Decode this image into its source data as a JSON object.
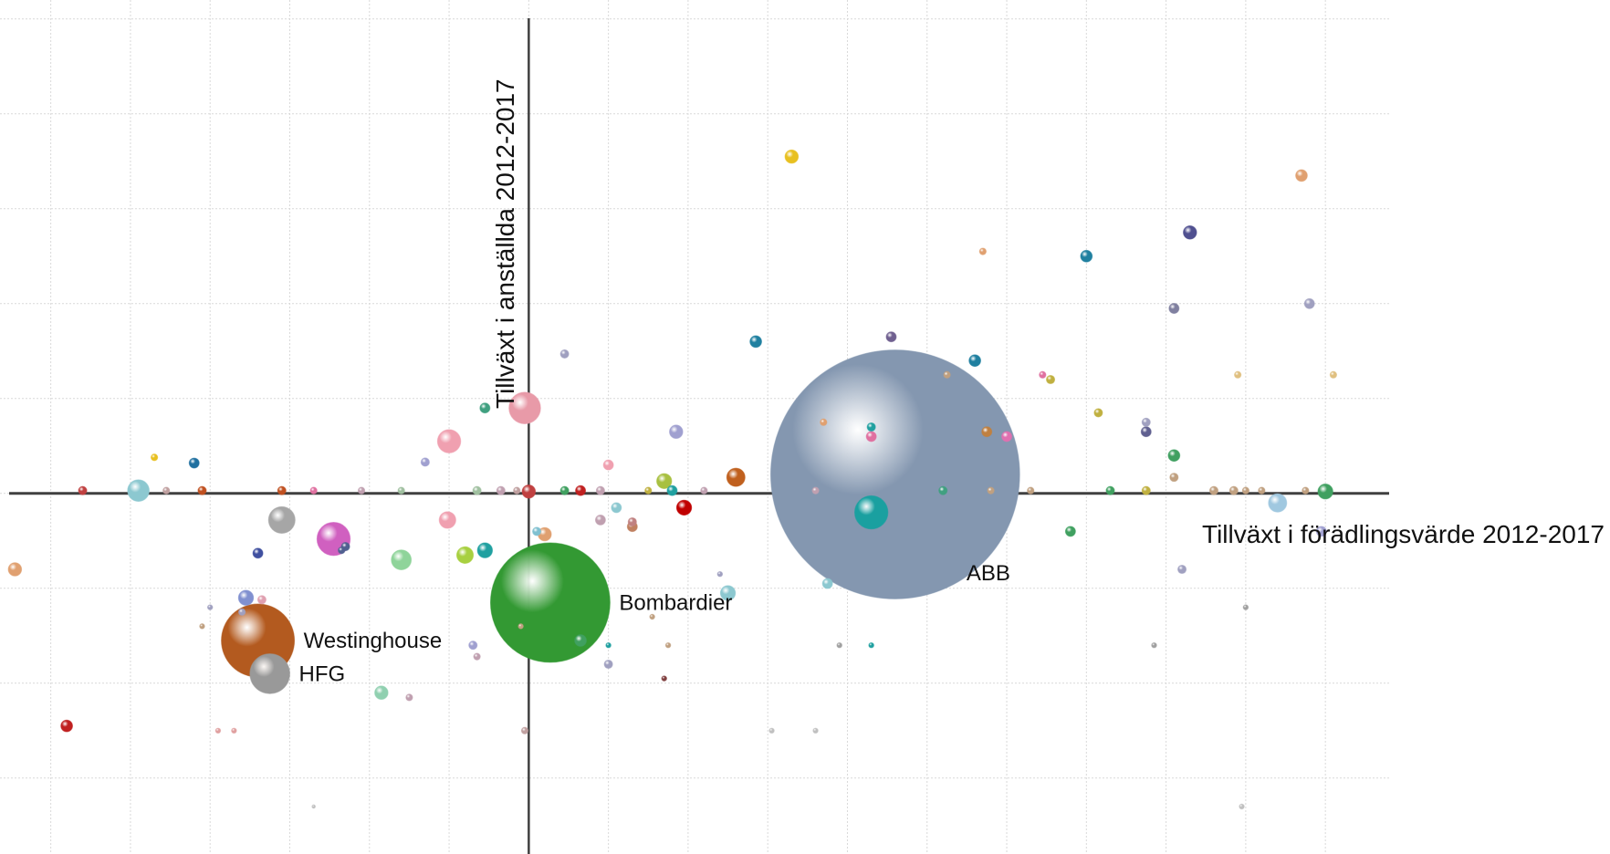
{
  "chart_data": {
    "type": "scatter",
    "subtype": "bubble",
    "title": "",
    "xlabel": "Tillväxt i förädlingsvärde 2012-2017",
    "ylabel": "Tillväxt i anställda 2012-2017",
    "xlim": [
      -6.5,
      10.8
    ],
    "ylim": [
      -3.8,
      5.2
    ],
    "grid": true,
    "axes_cross_at_origin": true,
    "labeled_points": [
      {
        "label": "ABB",
        "x": 4.6,
        "y": 0.2,
        "size": 150,
        "color": "#8497b0"
      },
      {
        "label": "Bombardier",
        "x": 0.27,
        "y": -1.15,
        "size": 72,
        "color": "#339933"
      },
      {
        "label": "Westinghouse",
        "x": -3.4,
        "y": -1.55,
        "size": 44,
        "color": "#b35a1f"
      },
      {
        "label": "HFG",
        "x": -3.25,
        "y": -1.9,
        "size": 24,
        "color": "#999999"
      }
    ],
    "points": [
      {
        "x": 4.3,
        "y": -0.2,
        "size": 20,
        "color": "#1aa0a0"
      },
      {
        "x": -0.05,
        "y": 0.9,
        "size": 19,
        "color": "#e89aa8"
      },
      {
        "x": -2.45,
        "y": -0.48,
        "size": 20,
        "color": "#d060c0"
      },
      {
        "x": -3.1,
        "y": -0.28,
        "size": 16,
        "color": "#a6a6a6"
      },
      {
        "x": -1.0,
        "y": 0.55,
        "size": 14,
        "color": "#f0a0b0"
      },
      {
        "x": -4.9,
        "y": 0.03,
        "size": 13,
        "color": "#8cc8d0"
      },
      {
        "x": -1.6,
        "y": -0.7,
        "size": 12,
        "color": "#8fd49a"
      },
      {
        "x": 2.6,
        "y": 0.17,
        "size": 11,
        "color": "#c0601e"
      },
      {
        "x": 9.4,
        "y": -0.1,
        "size": 11,
        "color": "#a0c8e0"
      },
      {
        "x": -1.02,
        "y": -0.28,
        "size": 10,
        "color": "#f0a0b0"
      },
      {
        "x": -0.8,
        "y": -0.65,
        "size": 10,
        "color": "#a8d040"
      },
      {
        "x": 1.7,
        "y": 0.13,
        "size": 9,
        "color": "#a8c040"
      },
      {
        "x": -3.55,
        "y": -1.1,
        "size": 9,
        "color": "#8090d0"
      },
      {
        "x": 2.5,
        "y": -1.05,
        "size": 9,
        "color": "#8cc8d0"
      },
      {
        "x": 1.95,
        "y": -0.15,
        "size": 9,
        "color": "#c00000"
      },
      {
        "x": -0.55,
        "y": -0.6,
        "size": 9,
        "color": "#20a0a0"
      },
      {
        "x": 10.0,
        "y": 0.02,
        "size": 9,
        "color": "#40a060"
      },
      {
        "x": -6.45,
        "y": -0.8,
        "size": 8,
        "color": "#e0a070"
      },
      {
        "x": -1.85,
        "y": -2.1,
        "size": 8,
        "color": "#90d0b0"
      },
      {
        "x": 0.2,
        "y": -0.43,
        "size": 8,
        "color": "#e0a070"
      },
      {
        "x": 0.0,
        "y": 0.02,
        "size": 8,
        "color": "#c04040"
      },
      {
        "x": 1.85,
        "y": 0.65,
        "size": 8,
        "color": "#a0a0d0"
      },
      {
        "x": 9.7,
        "y": 3.35,
        "size": 7,
        "color": "#e0a070"
      },
      {
        "x": 8.3,
        "y": 2.75,
        "size": 8,
        "color": "#505090"
      },
      {
        "x": 3.3,
        "y": 3.55,
        "size": 8,
        "color": "#e8c020"
      },
      {
        "x": -5.8,
        "y": -2.45,
        "size": 7,
        "color": "#c02020"
      },
      {
        "x": 0.65,
        "y": -1.55,
        "size": 7,
        "color": "#40a060"
      },
      {
        "x": 5.6,
        "y": 1.4,
        "size": 7,
        "color": "#2080a0"
      },
      {
        "x": 7.0,
        "y": 2.5,
        "size": 7,
        "color": "#2080a0"
      },
      {
        "x": 2.85,
        "y": 1.6,
        "size": 7,
        "color": "#2080a0"
      },
      {
        "x": 8.1,
        "y": 0.4,
        "size": 7,
        "color": "#40a060"
      },
      {
        "x": 1.3,
        "y": -0.35,
        "size": 6,
        "color": "#c08060"
      },
      {
        "x": 4.3,
        "y": 0.6,
        "size": 6,
        "color": "#e070a0"
      },
      {
        "x": 3.75,
        "y": -0.95,
        "size": 6,
        "color": "#8cc8d0"
      },
      {
        "x": 8.1,
        "y": 1.95,
        "size": 6,
        "color": "#8080a0"
      },
      {
        "x": 4.55,
        "y": 1.65,
        "size": 6,
        "color": "#706090"
      },
      {
        "x": -3.4,
        "y": -0.63,
        "size": 6,
        "color": "#4050a0"
      },
      {
        "x": -4.2,
        "y": 0.32,
        "size": 6,
        "color": "#2070a0"
      },
      {
        "x": -0.55,
        "y": 0.9,
        "size": 6,
        "color": "#40a080"
      },
      {
        "x": 1.0,
        "y": 0.3,
        "size": 6,
        "color": "#f0a0b0"
      },
      {
        "x": 6.0,
        "y": 0.6,
        "size": 6,
        "color": "#e070b0"
      },
      {
        "x": 7.75,
        "y": 0.65,
        "size": 6,
        "color": "#606090"
      },
      {
        "x": 5.75,
        "y": 0.65,
        "size": 6,
        "color": "#c08040"
      },
      {
        "x": 9.8,
        "y": 2.0,
        "size": 6,
        "color": "#a0a0c0"
      },
      {
        "x": 9.95,
        "y": -0.4,
        "size": 6,
        "color": "#a0a0d0"
      },
      {
        "x": 6.8,
        "y": -0.4,
        "size": 6,
        "color": "#40a060"
      },
      {
        "x": 0.9,
        "y": -0.28,
        "size": 6,
        "color": "#c0a0b0"
      },
      {
        "x": 0.65,
        "y": 0.03,
        "size": 6,
        "color": "#c02020"
      },
      {
        "x": 1.1,
        "y": -0.15,
        "size": 6,
        "color": "#8cc8d0"
      },
      {
        "x": 1.8,
        "y": 0.03,
        "size": 6,
        "color": "#20a0a0"
      },
      {
        "x": -1.3,
        "y": 0.33,
        "size": 5,
        "color": "#a0a0d0"
      },
      {
        "x": -0.7,
        "y": -1.6,
        "size": 5,
        "color": "#a0a0d0"
      },
      {
        "x": 0.45,
        "y": 1.47,
        "size": 5,
        "color": "#a0a0c0"
      },
      {
        "x": -5.6,
        "y": 0.03,
        "size": 5,
        "color": "#c04040"
      },
      {
        "x": -4.1,
        "y": 0.03,
        "size": 5,
        "color": "#c05020"
      },
      {
        "x": -3.1,
        "y": 0.03,
        "size": 5,
        "color": "#c05020"
      },
      {
        "x": -2.3,
        "y": -0.56,
        "size": 5,
        "color": "#506090"
      },
      {
        "x": -3.35,
        "y": -1.12,
        "size": 5,
        "color": "#e0a0b0"
      },
      {
        "x": 7.75,
        "y": 0.03,
        "size": 5,
        "color": "#c0b040"
      },
      {
        "x": 8.6,
        "y": 0.03,
        "size": 5,
        "color": "#c0a080"
      },
      {
        "x": 8.1,
        "y": 0.17,
        "size": 5,
        "color": "#c0a080"
      },
      {
        "x": 7.15,
        "y": 0.85,
        "size": 5,
        "color": "#c0b040"
      },
      {
        "x": 7.75,
        "y": 0.75,
        "size": 5,
        "color": "#a0a0c0"
      },
      {
        "x": 6.55,
        "y": 1.2,
        "size": 5,
        "color": "#c0b040"
      },
      {
        "x": 8.85,
        "y": 0.03,
        "size": 5,
        "color": "#c0a080"
      },
      {
        "x": 7.3,
        "y": 0.03,
        "size": 5,
        "color": "#40a060"
      },
      {
        "x": 8.2,
        "y": -0.8,
        "size": 5,
        "color": "#a0a0c0"
      },
      {
        "x": 5.2,
        "y": 0.03,
        "size": 5,
        "color": "#40a080"
      },
      {
        "x": 4.3,
        "y": 0.7,
        "size": 5,
        "color": "#20a0a0"
      },
      {
        "x": 1.3,
        "y": -0.3,
        "size": 5,
        "color": "#c08080"
      },
      {
        "x": 1.0,
        "y": -1.8,
        "size": 5,
        "color": "#a0a0c0"
      },
      {
        "x": -0.65,
        "y": 0.03,
        "size": 5,
        "color": "#a0c0a0"
      },
      {
        "x": -0.35,
        "y": 0.03,
        "size": 5,
        "color": "#c0a0b0"
      },
      {
        "x": -0.15,
        "y": 0.03,
        "size": 4,
        "color": "#c0a0a0"
      },
      {
        "x": 0.1,
        "y": -0.4,
        "size": 5,
        "color": "#80c0d0"
      },
      {
        "x": 0.9,
        "y": 0.03,
        "size": 5,
        "color": "#c0a0b0"
      },
      {
        "x": 0.45,
        "y": 0.03,
        "size": 5,
        "color": "#40a060"
      },
      {
        "x": -4.55,
        "y": 0.03,
        "size": 4,
        "color": "#c0a0a0"
      },
      {
        "x": -2.1,
        "y": 0.03,
        "size": 4,
        "color": "#c0a0b0"
      },
      {
        "x": -1.6,
        "y": 0.03,
        "size": 4,
        "color": "#a0c0a0"
      },
      {
        "x": 1.5,
        "y": 0.03,
        "size": 4,
        "color": "#c0b040"
      },
      {
        "x": 2.2,
        "y": 0.03,
        "size": 4,
        "color": "#c0a0b0"
      },
      {
        "x": 3.6,
        "y": 0.03,
        "size": 4,
        "color": "#c0a0b0"
      },
      {
        "x": 5.8,
        "y": 0.03,
        "size": 4,
        "color": "#c0a080"
      },
      {
        "x": 6.3,
        "y": 0.03,
        "size": 4,
        "color": "#c0a080"
      },
      {
        "x": 9.0,
        "y": 0.03,
        "size": 4,
        "color": "#c0a080"
      },
      {
        "x": 9.2,
        "y": 0.03,
        "size": 4,
        "color": "#c0a080"
      },
      {
        "x": 9.75,
        "y": 0.03,
        "size": 4,
        "color": "#c0a080"
      },
      {
        "x": -4.7,
        "y": 0.38,
        "size": 4,
        "color": "#e8c020"
      },
      {
        "x": 5.7,
        "y": 2.55,
        "size": 4,
        "color": "#e0a070"
      },
      {
        "x": 3.7,
        "y": 0.75,
        "size": 4,
        "color": "#e0a070"
      },
      {
        "x": 6.45,
        "y": 1.25,
        "size": 4,
        "color": "#e070a0"
      },
      {
        "x": 10.1,
        "y": 1.25,
        "size": 4,
        "color": "#e0c080"
      },
      {
        "x": 8.9,
        "y": 1.25,
        "size": 4,
        "color": "#e0c080"
      },
      {
        "x": 5.25,
        "y": 1.25,
        "size": 4,
        "color": "#c0a080"
      },
      {
        "x": -2.35,
        "y": -0.6,
        "size": 4,
        "color": "#506090"
      },
      {
        "x": -3.6,
        "y": -1.25,
        "size": 4,
        "color": "#a0a0c0"
      },
      {
        "x": -2.7,
        "y": 0.03,
        "size": 4,
        "color": "#e070a0"
      },
      {
        "x": -0.65,
        "y": -1.72,
        "size": 4,
        "color": "#c0a0b0"
      },
      {
        "x": -1.5,
        "y": -2.15,
        "size": 4,
        "color": "#c0a0b0"
      },
      {
        "x": -4.1,
        "y": -1.4,
        "size": 3,
        "color": "#c0a080"
      },
      {
        "x": -4.0,
        "y": -1.2,
        "size": 3,
        "color": "#a0a0c0"
      },
      {
        "x": -3.7,
        "y": -2.5,
        "size": 3,
        "color": "#e0a0a0"
      },
      {
        "x": -3.9,
        "y": -2.5,
        "size": 3,
        "color": "#e0a0a0"
      },
      {
        "x": -0.05,
        "y": -2.5,
        "size": 4,
        "color": "#c0a0a0"
      },
      {
        "x": -0.1,
        "y": -1.4,
        "size": 3,
        "color": "#c0a080"
      },
      {
        "x": 1.55,
        "y": -1.3,
        "size": 3,
        "color": "#c0a080"
      },
      {
        "x": 1.75,
        "y": -1.6,
        "size": 3,
        "color": "#c0a080"
      },
      {
        "x": 2.4,
        "y": -0.85,
        "size": 3,
        "color": "#a0a0c0"
      },
      {
        "x": 3.05,
        "y": -2.5,
        "size": 3,
        "color": "#c0c0c0"
      },
      {
        "x": 3.6,
        "y": -2.5,
        "size": 3,
        "color": "#c0c0c0"
      },
      {
        "x": 3.9,
        "y": -1.6,
        "size": 3,
        "color": "#a0a0a0"
      },
      {
        "x": 4.3,
        "y": -1.6,
        "size": 3,
        "color": "#20a0a0"
      },
      {
        "x": 7.85,
        "y": -1.6,
        "size": 3,
        "color": "#a0a0a0"
      },
      {
        "x": 9.0,
        "y": -1.2,
        "size": 3,
        "color": "#a0a0a0"
      },
      {
        "x": 8.95,
        "y": -3.3,
        "size": 3,
        "color": "#c0c0c0"
      },
      {
        "x": -2.7,
        "y": -3.3,
        "size": 2,
        "color": "#c0c0c0"
      },
      {
        "x": 1.7,
        "y": -1.95,
        "size": 3,
        "color": "#804040"
      },
      {
        "x": 1.0,
        "y": -1.6,
        "size": 3,
        "color": "#20a0a0"
      }
    ]
  }
}
